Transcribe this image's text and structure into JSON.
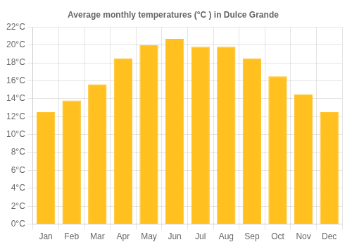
{
  "chart_data": {
    "type": "bar",
    "title": "Average monthly temperatures (°C ) in Dulce Grande",
    "categories": [
      "Jan",
      "Feb",
      "Mar",
      "Apr",
      "May",
      "Jun",
      "Jul",
      "Aug",
      "Sep",
      "Oct",
      "Nov",
      "Dec"
    ],
    "values": [
      12.5,
      13.8,
      15.6,
      18.5,
      20.0,
      20.7,
      19.8,
      19.8,
      18.5,
      16.5,
      14.5,
      12.5
    ],
    "color": "#FFC020",
    "ylim": [
      0,
      22
    ],
    "yticks": [
      {
        "value": 0,
        "label": "0°C"
      },
      {
        "value": 2,
        "label": "2°C"
      },
      {
        "value": 4,
        "label": "4°C"
      },
      {
        "value": 6,
        "label": "6°C"
      },
      {
        "value": 8,
        "label": "8°C"
      },
      {
        "value": 10,
        "label": "10°C"
      },
      {
        "value": 12,
        "label": "12°C"
      },
      {
        "value": 14,
        "label": "14°C"
      },
      {
        "value": 16,
        "label": "16°C"
      },
      {
        "value": 18,
        "label": "18°C"
      },
      {
        "value": 20,
        "label": "20°C"
      },
      {
        "value": 22,
        "label": "22°C"
      }
    ],
    "grid": true
  }
}
